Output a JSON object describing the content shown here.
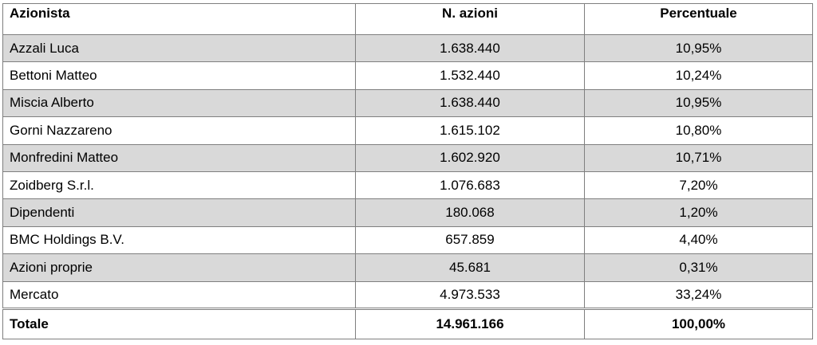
{
  "table": {
    "headers": [
      "Azionista",
      "N. azioni",
      "Percentuale"
    ],
    "rows": [
      {
        "name": "Azzali Luca",
        "shares": "1.638.440",
        "pct": "10,95%"
      },
      {
        "name": "Bettoni Matteo",
        "shares": "1.532.440",
        "pct": "10,24%"
      },
      {
        "name": "Miscia Alberto",
        "shares": "1.638.440",
        "pct": "10,95%"
      },
      {
        "name": "Gorni Nazzareno",
        "shares": "1.615.102",
        "pct": "10,80%"
      },
      {
        "name": "Monfredini Matteo",
        "shares": "1.602.920",
        "pct": "10,71%"
      },
      {
        "name": "Zoidberg S.r.l.",
        "shares": "1.076.683",
        "pct": "7,20%"
      },
      {
        "name": "Dipendenti",
        "shares": "180.068",
        "pct": "1,20%"
      },
      {
        "name": "BMC Holdings B.V.",
        "shares": "657.859",
        "pct": "4,40%"
      },
      {
        "name": "Azioni proprie",
        "shares": "45.681",
        "pct": "0,31%"
      },
      {
        "name": "Mercato",
        "shares": "4.973.533",
        "pct": "33,24%"
      }
    ],
    "total": {
      "name": "Totale",
      "shares": "14.961.166",
      "pct": "100,00%"
    },
    "shade_color": "#d9d9d9",
    "border_color": "#7f7f7f"
  }
}
